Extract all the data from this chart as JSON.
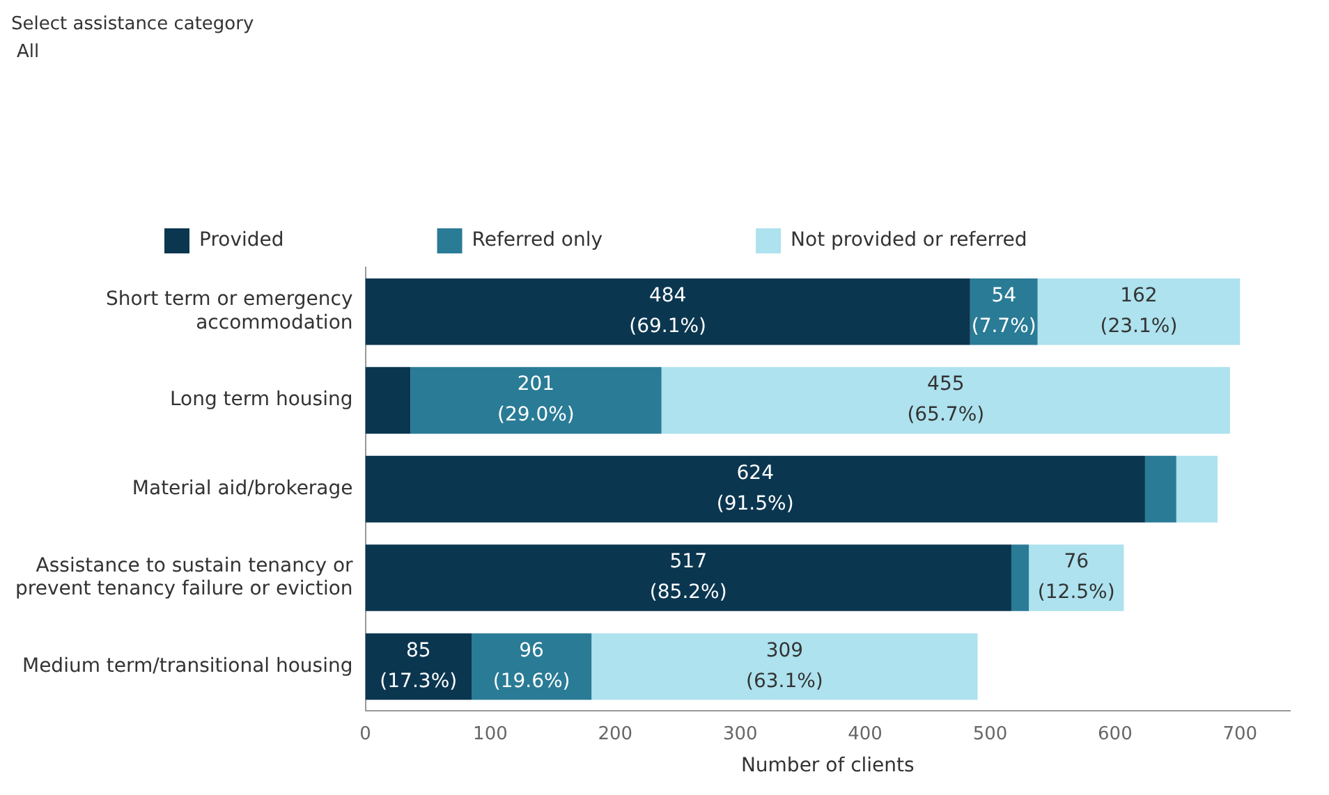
{
  "chart_data": {
    "type": "bar",
    "orientation": "horizontal",
    "stacked": true,
    "xlabel": "Number of clients",
    "annotations": [
      "Select assistance category",
      "All"
    ],
    "categories": [
      "Short term or emergency accommodation",
      "Long term housing",
      "Material aid/brokerage",
      "Assistance to sustain tenancy or prevent tenancy failure or eviction",
      "Medium term/transitional housing"
    ],
    "series": [
      {
        "name": "Provided",
        "color": "#0b3650",
        "values": [
          484,
          36,
          624,
          517,
          85
        ],
        "value_labels": [
          "484 (69.1%)",
          null,
          "624 (91.5%)",
          "517 (85.2%)",
          "85 (17.3%)"
        ]
      },
      {
        "name": "Referred only",
        "color": "#2a7b96",
        "values": [
          54,
          201,
          25,
          14,
          96
        ],
        "value_labels": [
          "54 (7.7%)",
          "201 (29.0%)",
          null,
          null,
          "96 (19.6%)"
        ]
      },
      {
        "name": "Not provided or referred",
        "color": "#ade2ee",
        "values": [
          162,
          455,
          33,
          76,
          309
        ],
        "value_labels": [
          "162 (23.1%)",
          "455 (65.7%)",
          null,
          "76 (12.5%)",
          "309 (63.1%)"
        ]
      }
    ],
    "xlim": [
      0,
      740
    ],
    "xticks": [
      0,
      100,
      200,
      300,
      400,
      500,
      600,
      700
    ],
    "grid": false,
    "legend": "top"
  }
}
